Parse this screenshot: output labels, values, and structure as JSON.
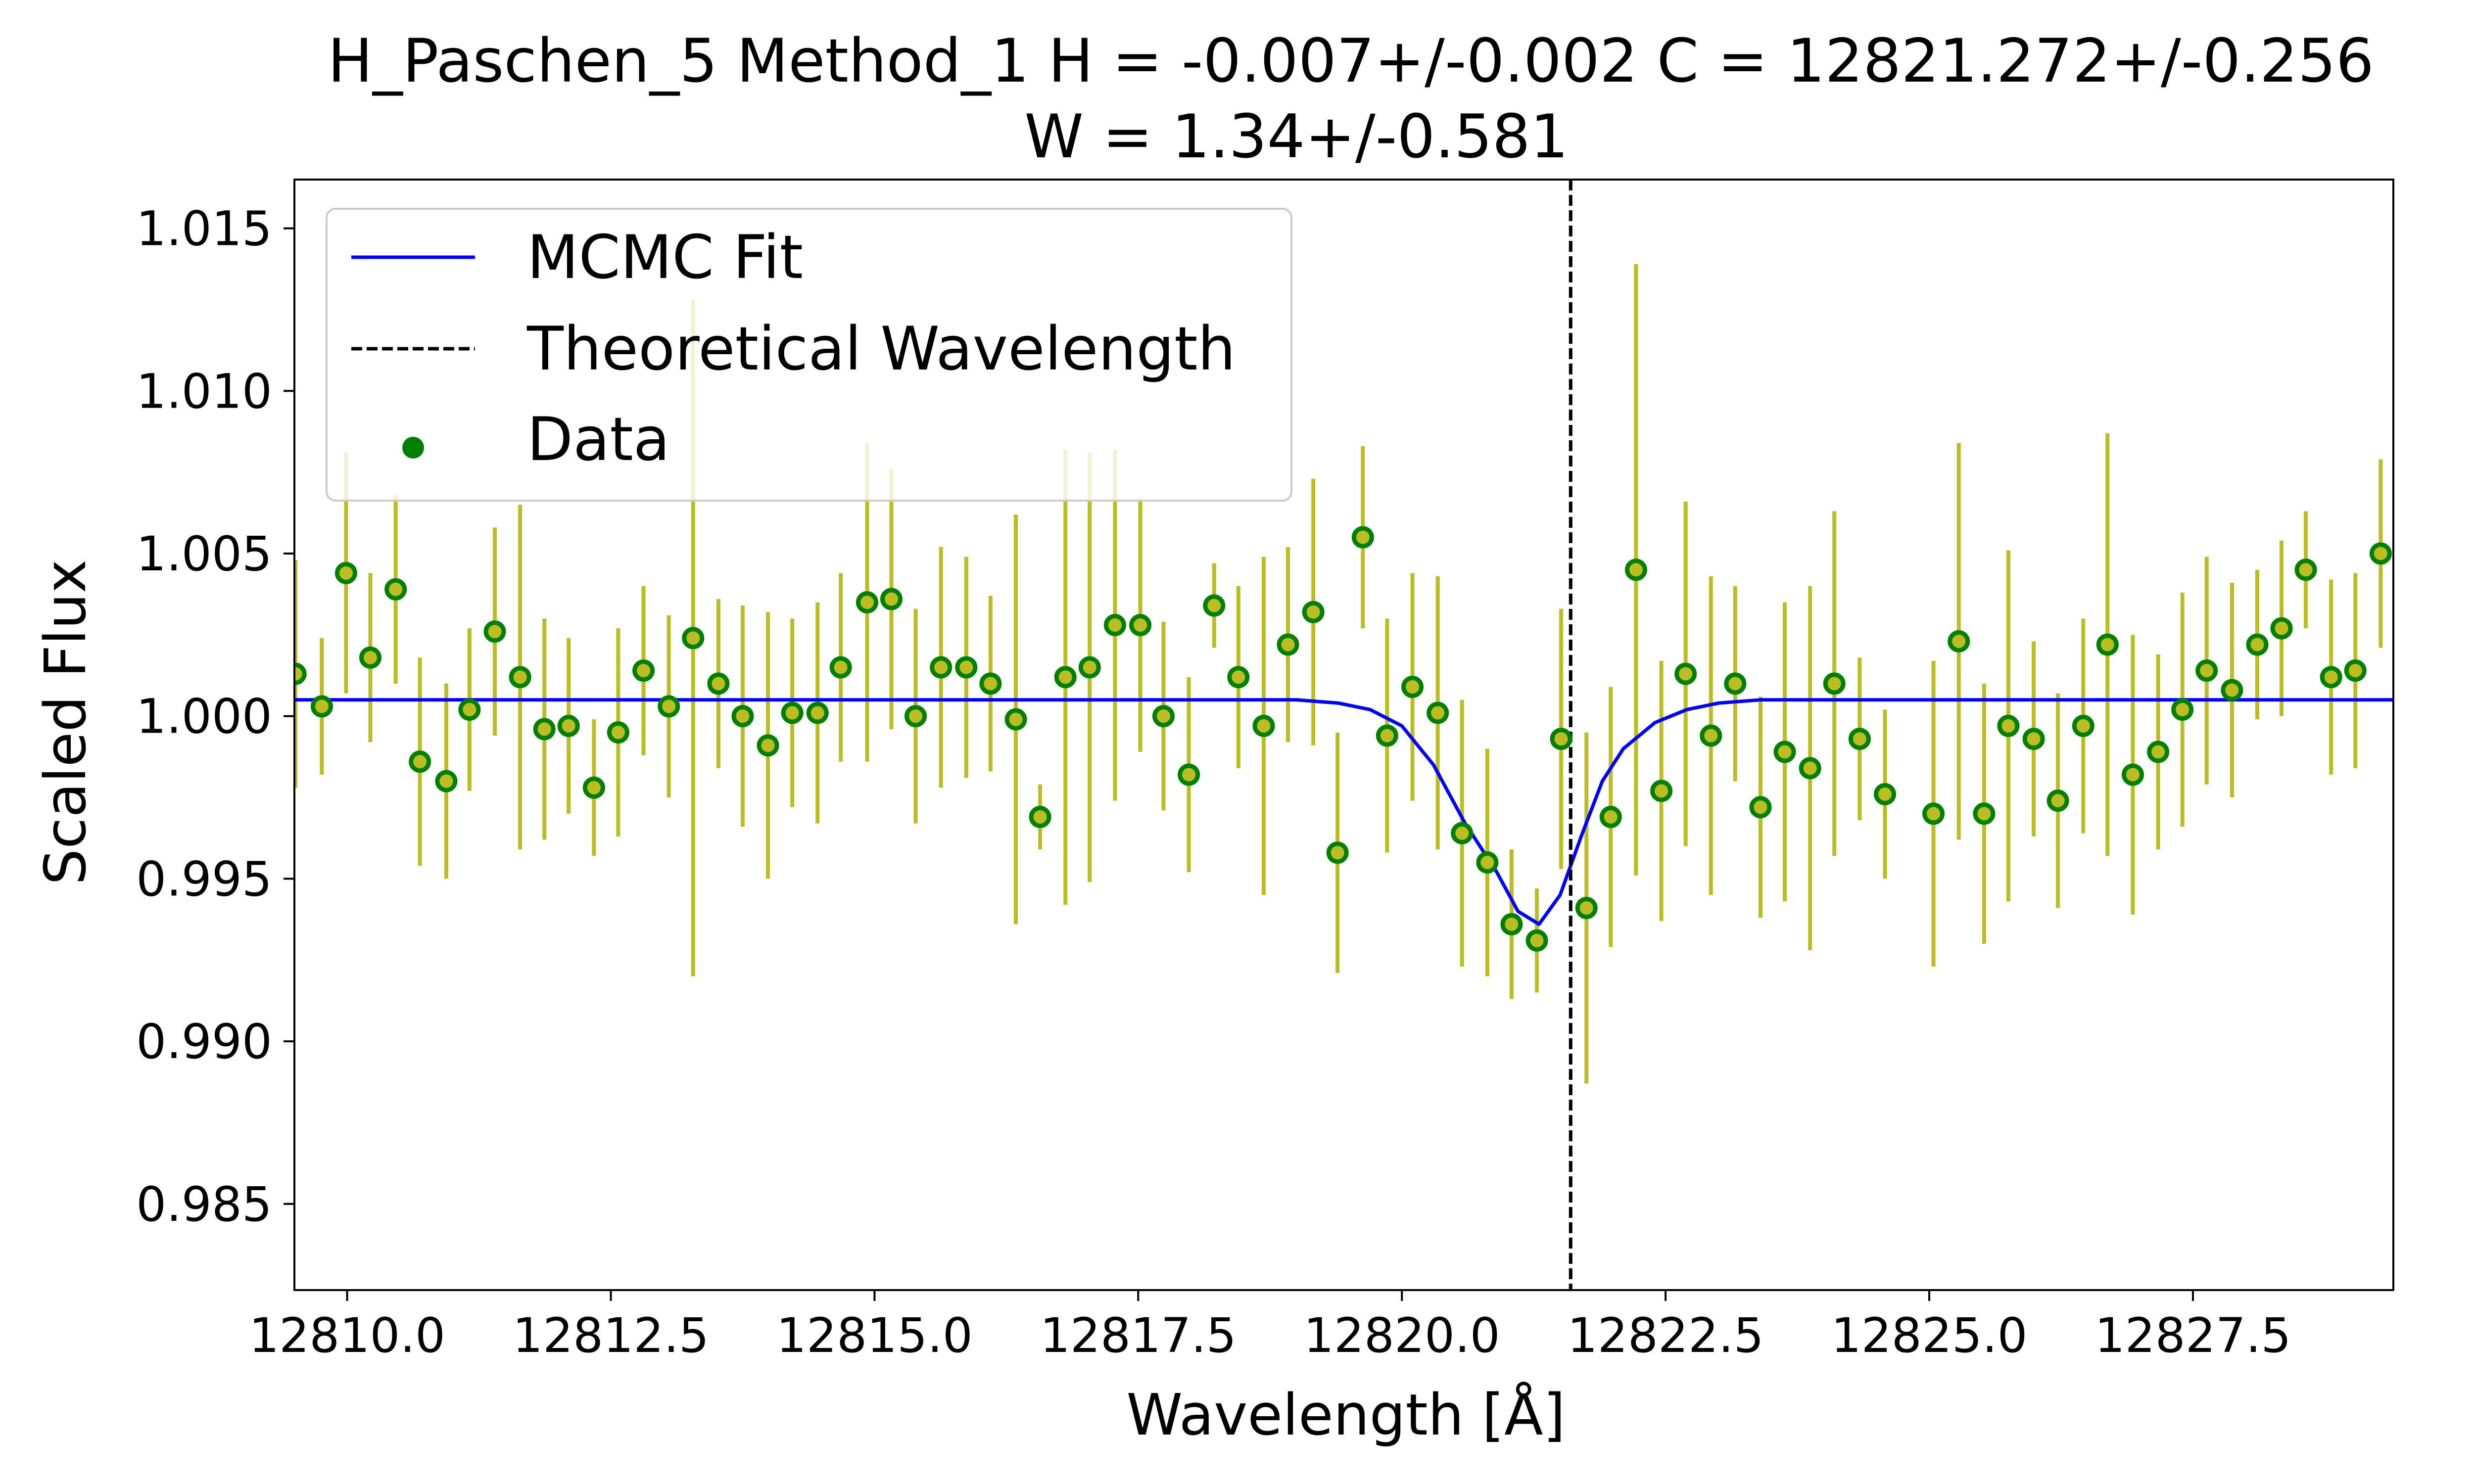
{
  "chart_data": {
    "type": "scatter",
    "title": "H_Paschen_5   Method_1  H = -0.007+/-0.002   C = 12821.272+/-0.256",
    "subtitle": "W = 1.34+/-0.581",
    "xlabel": "Wavelength [Å]",
    "ylabel": "Scaled Flux",
    "xlim": [
      12809.5,
      12829.4
    ],
    "ylim": [
      0.98235,
      1.0165
    ],
    "xticks": [
      12810.0,
      12812.5,
      12815.0,
      12817.5,
      12820.0,
      12822.5,
      12825.0,
      12827.5
    ],
    "xtick_labels": [
      "12810.0",
      "12812.5",
      "12815.0",
      "12817.5",
      "12820.0",
      "12822.5",
      "12825.0",
      "12827.5"
    ],
    "yticks": [
      0.985,
      0.99,
      0.995,
      1.0,
      1.005,
      1.01,
      1.015
    ],
    "ytick_labels": [
      "0.985",
      "0.990",
      "0.995",
      "1.000",
      "1.005",
      "1.010",
      "1.015"
    ],
    "grid": false,
    "legend": {
      "placement": "top-left",
      "entries": [
        {
          "label": "MCMC Fit",
          "style": "line",
          "color": "#0000ff"
        },
        {
          "label": "Theoretical Wavelength",
          "style": "dashed",
          "color": "#000000"
        },
        {
          "label": "Data",
          "style": "marker",
          "color": "#008000"
        }
      ]
    },
    "theoretical_wavelength": 12821.6,
    "fit": {
      "name": "MCMC Fit",
      "color": "#0000ff",
      "continuum": 1.0005,
      "x": [
        12809.5,
        12819.0,
        12819.4,
        12819.7,
        12820.0,
        12820.3,
        12820.6,
        12820.9,
        12821.1,
        12821.3,
        12821.5,
        12821.7,
        12821.9,
        12822.1,
        12822.4,
        12822.7,
        12823.0,
        12823.4,
        12829.4
      ],
      "y": [
        1.0005,
        1.0005,
        1.0004,
        1.0002,
        0.9997,
        0.9985,
        0.9967,
        0.9952,
        0.994,
        0.9936,
        0.9945,
        0.9963,
        0.998,
        0.999,
        0.9998,
        1.0002,
        1.0004,
        1.0005,
        1.0005
      ]
    },
    "data": {
      "name": "Data",
      "marker_color": "#008000",
      "marker_face": "#bcbd22",
      "errorbar_color": "#bcbd22",
      "x": [
        12809.51,
        12809.76,
        12809.99,
        12810.22,
        12810.46,
        12810.69,
        12810.94,
        12811.16,
        12811.4,
        12811.64,
        12811.87,
        12812.1,
        12812.34,
        12812.57,
        12812.81,
        12813.05,
        12813.28,
        12813.52,
        12813.75,
        12813.99,
        12814.22,
        12814.46,
        12814.68,
        12814.93,
        12815.16,
        12815.39,
        12815.63,
        12815.87,
        12816.1,
        12816.34,
        12816.57,
        12816.81,
        12817.04,
        12817.28,
        12817.52,
        12817.74,
        12817.98,
        12818.22,
        12818.45,
        12818.69,
        12818.92,
        12819.16,
        12819.39,
        12819.63,
        12819.86,
        12820.1,
        12820.34,
        12820.57,
        12820.81,
        12821.04,
        12821.28,
        12821.51,
        12821.75,
        12821.98,
        12822.22,
        12822.46,
        12822.69,
        12822.93,
        12823.16,
        12823.4,
        12823.63,
        12823.87,
        12824.1,
        12824.34,
        12824.58,
        12825.04,
        12825.28,
        12825.52,
        12825.75,
        12825.99,
        12826.22,
        12826.46,
        12826.69,
        12826.93,
        12827.17,
        12827.4,
        12827.63,
        12827.87,
        12828.11,
        12828.34,
        12828.57,
        12828.81,
        12829.04,
        12829.28
      ],
      "y": [
        1.0013,
        1.0003,
        1.0044,
        1.0018,
        1.0039,
        0.9986,
        0.998,
        1.0002,
        1.0026,
        1.0012,
        0.9996,
        0.9997,
        0.9978,
        0.9995,
        1.0014,
        1.0003,
        1.0024,
        1.001,
        1.0,
        0.9991,
        1.0001,
        1.0001,
        1.0015,
        1.0035,
        1.0036,
        1.0,
        1.0015,
        1.0015,
        1.001,
        0.9999,
        0.9969,
        1.0012,
        1.0015,
        1.0028,
        1.0028,
        1.0,
        0.9982,
        1.0034,
        1.0012,
        0.9997,
        1.0022,
        1.0032,
        0.9958,
        1.0055,
        0.9994,
        1.0009,
        1.0001,
        0.9964,
        0.9955,
        0.9936,
        0.9931,
        0.9993,
        0.9941,
        0.9969,
        1.0045,
        0.9977,
        1.0013,
        0.9994,
        1.001,
        0.9972,
        0.9989,
        0.9984,
        1.001,
        0.9993,
        0.9976,
        0.997,
        1.0023,
        0.997,
        0.9997,
        0.9993,
        0.9974,
        0.9997,
        1.0022,
        0.9982,
        0.9989,
        1.0002,
        1.0014,
        1.0008,
        1.0022,
        1.0027,
        1.0045,
        1.0012,
        1.0014,
        1.005
      ],
      "yerr": [
        0.0035,
        0.0021,
        0.0037,
        0.0026,
        0.0029,
        0.0032,
        0.003,
        0.0025,
        0.0032,
        0.0053,
        0.0034,
        0.0027,
        0.0021,
        0.0032,
        0.0026,
        0.0028,
        0.0104,
        0.0026,
        0.0034,
        0.0041,
        0.0029,
        0.0034,
        0.0029,
        0.0049,
        0.004,
        0.0033,
        0.0037,
        0.0034,
        0.0027,
        0.0063,
        0.001,
        0.007,
        0.0066,
        0.0054,
        0.0039,
        0.0029,
        0.003,
        0.0013,
        0.0028,
        0.0052,
        0.003,
        0.0041,
        0.0037,
        0.0028,
        0.0036,
        0.0035,
        0.0042,
        0.0041,
        0.0035,
        0.0023,
        0.0016,
        0.004,
        0.0054,
        0.004,
        0.0094,
        0.004,
        0.0053,
        0.0049,
        0.003,
        0.0034,
        0.0046,
        0.0056,
        0.0053,
        0.0025,
        0.0026,
        0.0047,
        0.0061,
        0.004,
        0.0054,
        0.003,
        0.0033,
        0.0033,
        0.0065,
        0.0043,
        0.003,
        0.0036,
        0.0035,
        0.0033,
        0.0023,
        0.0027,
        0.0018,
        0.003,
        0.003,
        0.0029
      ]
    }
  }
}
